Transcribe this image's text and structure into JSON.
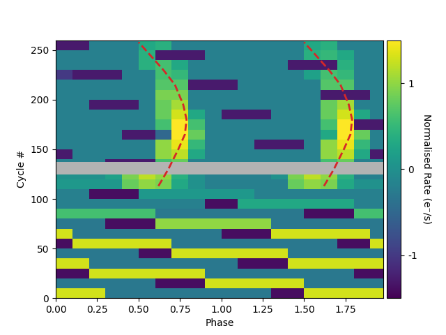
{
  "chart_data": {
    "type": "heatmap",
    "x_label": "Phase",
    "y_label": "Cycle #",
    "xlim": [
      0,
      1.98
    ],
    "ylim": [
      0,
      260
    ],
    "xticks": [
      {
        "value": 0,
        "label": "0.00"
      },
      {
        "value": 0.25,
        "label": "0.25"
      },
      {
        "value": 0.5,
        "label": "0.50"
      },
      {
        "value": 0.75,
        "label": "0.75"
      },
      {
        "value": 1.0,
        "label": "1.00"
      },
      {
        "value": 1.25,
        "label": "1.25"
      },
      {
        "value": 1.5,
        "label": "1.50"
      },
      {
        "value": 1.75,
        "label": "1.75"
      }
    ],
    "yticks": [
      0,
      50,
      100,
      150,
      200,
      250
    ],
    "x_edges": [
      0,
      0.1,
      0.2,
      0.3,
      0.4,
      0.5,
      0.6,
      0.7,
      0.8,
      0.9,
      1.0,
      1.1,
      1.2,
      1.3,
      1.4,
      1.5,
      1.6,
      1.7,
      1.8,
      1.9,
      2.0
    ],
    "y_edges": [
      0,
      10,
      20,
      30,
      40,
      50,
      60,
      70,
      80,
      90,
      100,
      110,
      120,
      125,
      137,
      140,
      150,
      160,
      170,
      180,
      190,
      200,
      210,
      220,
      230,
      240,
      250,
      260
    ],
    "cells": [
      [
        1.3,
        1.3,
        1.3,
        -0.3,
        -0.3,
        -0.3,
        -0.3,
        -0.3,
        -0.3,
        -0.3,
        -0.3,
        -0.3,
        -0.3,
        -1.4,
        -1.4,
        1.3,
        1.3,
        1.3,
        1.3,
        1.3
      ],
      [
        -0.3,
        -0.3,
        -0.3,
        -0.3,
        -0.3,
        -0.3,
        -1.4,
        -1.4,
        -1.4,
        1.3,
        1.3,
        1.3,
        1.3,
        1.3,
        1.3,
        -0.3,
        -0.3,
        -0.3,
        -0.3,
        -0.3
      ],
      [
        -1.4,
        -1.4,
        1.3,
        1.3,
        1.3,
        1.3,
        1.3,
        1.3,
        1.3,
        -0.3,
        -0.3,
        -0.3,
        -0.3,
        -0.3,
        -0.3,
        -0.3,
        -0.3,
        -0.3,
        -1.4,
        -1.4
      ],
      [
        1.3,
        1.3,
        -0.3,
        -0.3,
        -0.3,
        -0.3,
        -0.3,
        -0.3,
        -0.3,
        -0.3,
        -0.3,
        -1.4,
        -1.4,
        -1.4,
        1.3,
        1.3,
        1.3,
        1.3,
        1.3,
        1.3
      ],
      [
        -0.3,
        -0.3,
        -0.3,
        -0.3,
        -0.3,
        -1.4,
        -1.4,
        1.3,
        1.3,
        1.3,
        1.3,
        1.3,
        1.3,
        1.3,
        -0.3,
        -0.3,
        -0.3,
        -0.3,
        -0.3,
        -0.3
      ],
      [
        -1.4,
        1.3,
        1.3,
        1.3,
        1.3,
        1.3,
        1.3,
        -0.3,
        -0.3,
        -0.3,
        -0.3,
        -0.3,
        -0.3,
        -0.3,
        -0.3,
        -0.3,
        -0.3,
        -1.4,
        -1.4,
        1.3
      ],
      [
        1.3,
        -0.3,
        -0.3,
        -0.3,
        -0.3,
        -0.3,
        -0.3,
        -0.3,
        -0.3,
        -0.3,
        -1.4,
        -1.4,
        -1.4,
        1.3,
        1.3,
        1.3,
        1.3,
        1.3,
        1.3,
        -0.3
      ],
      [
        -0.3,
        -0.3,
        -0.3,
        -1.4,
        -1.4,
        -1.4,
        1.0,
        1.0,
        1.0,
        1.0,
        1.0,
        1.0,
        1.0,
        -0.3,
        -0.3,
        -0.3,
        -0.3,
        -0.3,
        -0.3,
        -0.3
      ],
      [
        0.6,
        0.6,
        0.6,
        0.6,
        0.6,
        0.6,
        -0.3,
        -0.3,
        -0.3,
        -0.3,
        -0.3,
        -0.3,
        -0.3,
        -0.3,
        -0.3,
        -1.4,
        -1.4,
        -1.4,
        0.6,
        0.6
      ],
      [
        -0.2,
        -0.2,
        -0.2,
        -0.2,
        -0.2,
        -0.2,
        -0.2,
        -0.2,
        -0.2,
        -1.4,
        -1.4,
        0.3,
        0.3,
        0.3,
        0.3,
        0.3,
        0.3,
        0.3,
        -0.2,
        -0.2
      ],
      [
        -0.2,
        -0.2,
        -1.4,
        -1.4,
        -1.4,
        0.1,
        0.1,
        0.1,
        0.1,
        0.1,
        0.1,
        0.1,
        -0.2,
        -0.2,
        -0.2,
        -0.2,
        -0.2,
        -0.2,
        -0.2,
        -0.2
      ],
      [
        0.1,
        0.1,
        0.1,
        0.1,
        0.8,
        1.0,
        0.9,
        0.3,
        0.0,
        -0.2,
        -0.2,
        -0.2,
        -0.2,
        -0.2,
        0.8,
        1.0,
        0.9,
        0.3,
        0.0,
        0.0
      ],
      [
        0.0,
        0.0,
        0.0,
        0.2,
        0.9,
        1.2,
        1.0,
        0.4,
        0.0,
        -0.2,
        -0.2,
        -0.2,
        -0.2,
        0.0,
        0.9,
        1.2,
        1.0,
        0.4,
        -0.2,
        -0.2
      ],
      [
        null,
        null,
        null,
        null,
        null,
        null,
        null,
        null,
        null,
        null,
        null,
        null,
        null,
        null,
        null,
        null,
        null,
        null,
        null,
        null
      ],
      [
        -0.2,
        -0.2,
        -0.2,
        -1.3,
        -1.3,
        -1.3,
        0.6,
        0.8,
        -0.2,
        -0.2,
        -0.2,
        -0.2,
        -0.2,
        -0.2,
        -0.2,
        -0.2,
        0.6,
        0.8,
        -0.2,
        -0.2
      ],
      [
        -1.3,
        -0.2,
        -0.2,
        -0.2,
        -0.2,
        -0.2,
        1.0,
        1.2,
        0.3,
        -0.2,
        -0.2,
        -0.2,
        -0.2,
        -0.2,
        -0.2,
        -0.2,
        1.0,
        1.2,
        0.3,
        -1.3
      ],
      [
        -0.2,
        -0.2,
        -0.2,
        -0.2,
        -0.2,
        -0.2,
        1.0,
        1.4,
        0.5,
        -0.2,
        -0.2,
        -0.2,
        -1.3,
        -1.3,
        -1.3,
        -0.2,
        1.0,
        1.4,
        0.5,
        -0.2
      ],
      [
        -0.2,
        -0.2,
        -0.2,
        -0.2,
        -1.3,
        -1.3,
        -0.5,
        1.5,
        0.8,
        -0.2,
        -0.2,
        -0.2,
        -0.2,
        -0.2,
        -0.2,
        -0.2,
        0.3,
        1.5,
        0.8,
        -0.2
      ],
      [
        -0.2,
        -0.2,
        -0.2,
        -0.2,
        -0.2,
        -0.2,
        0.6,
        1.5,
        0.6,
        -0.2,
        -0.2,
        -0.2,
        -0.2,
        -0.2,
        -0.2,
        -0.2,
        0.6,
        1.5,
        -1.3,
        -1.3
      ],
      [
        -0.2,
        -0.2,
        -0.2,
        -0.2,
        -0.2,
        -0.2,
        0.8,
        1.3,
        0.3,
        -0.2,
        -1.3,
        -1.3,
        -1.3,
        -0.2,
        -0.2,
        -0.2,
        0.8,
        1.3,
        0.3,
        -0.2
      ],
      [
        -0.2,
        -0.2,
        -1.3,
        -1.3,
        -1.3,
        -0.2,
        0.8,
        1.1,
        -0.2,
        -0.2,
        -0.2,
        -0.2,
        -0.2,
        -0.2,
        -0.2,
        -0.2,
        0.8,
        1.1,
        -0.2,
        -0.2
      ],
      [
        -0.2,
        -0.2,
        -0.2,
        -0.2,
        -0.2,
        -0.2,
        0.9,
        0.9,
        -0.2,
        -0.2,
        -0.2,
        -0.2,
        -0.2,
        -0.2,
        -0.2,
        -0.2,
        -1.3,
        -1.3,
        -1.3,
        -0.2
      ],
      [
        -0.2,
        -0.2,
        -0.2,
        -0.2,
        -0.2,
        -0.2,
        0.7,
        0.7,
        -1.3,
        -1.3,
        -1.3,
        -0.2,
        -0.2,
        -0.2,
        -0.2,
        -0.2,
        0.7,
        0.7,
        -0.2,
        -0.2
      ],
      [
        -1.0,
        -1.3,
        -1.3,
        -1.3,
        -0.2,
        -0.2,
        0.6,
        0.5,
        -0.2,
        -0.2,
        -0.2,
        -0.2,
        -0.2,
        -0.2,
        -0.2,
        0.2,
        0.6,
        0.5,
        -0.2,
        -0.2
      ],
      [
        -0.2,
        -0.2,
        -0.2,
        -0.2,
        -0.2,
        0.4,
        0.6,
        0.3,
        -0.2,
        -0.2,
        -0.2,
        -0.2,
        -0.2,
        -0.2,
        -1.3,
        -1.3,
        -1.3,
        0.4,
        -0.2,
        -0.2
      ],
      [
        -0.2,
        -0.2,
        -0.2,
        -0.2,
        -0.2,
        0.4,
        -1.3,
        -1.3,
        -1.3,
        -0.2,
        -0.2,
        -0.2,
        -0.2,
        -0.2,
        -0.2,
        0.4,
        0.5,
        0.3,
        -0.2,
        -0.2
      ],
      [
        -1.3,
        -1.3,
        -0.2,
        -0.2,
        -0.2,
        0.3,
        0.4,
        -0.2,
        -0.2,
        -0.2,
        -0.2,
        -0.2,
        -0.2,
        -0.2,
        -0.2,
        0.3,
        0.4,
        -0.2,
        -0.2,
        -0.2
      ]
    ],
    "colorbar": {
      "label": "Normalised Rate (e⁻/s)",
      "range": [
        -1.5,
        1.5
      ],
      "ticks": [
        -1,
        0,
        1
      ]
    },
    "series": [
      {
        "type": "line",
        "color": "#d62728",
        "line_style": "dashed",
        "x": [
          0.62,
          0.68,
          0.74,
          0.78,
          0.79,
          0.77,
          0.72,
          0.65,
          0.57,
          0.5
        ],
        "y": [
          113,
          130,
          150,
          165,
          180,
          195,
          215,
          230,
          245,
          258
        ]
      },
      {
        "type": "line",
        "color": "#d62728",
        "line_style": "dashed",
        "x": [
          1.62,
          1.68,
          1.74,
          1.78,
          1.79,
          1.77,
          1.72,
          1.65,
          1.57,
          1.5
        ],
        "y": [
          113,
          130,
          150,
          165,
          180,
          195,
          215,
          230,
          245,
          258
        ]
      }
    ]
  }
}
